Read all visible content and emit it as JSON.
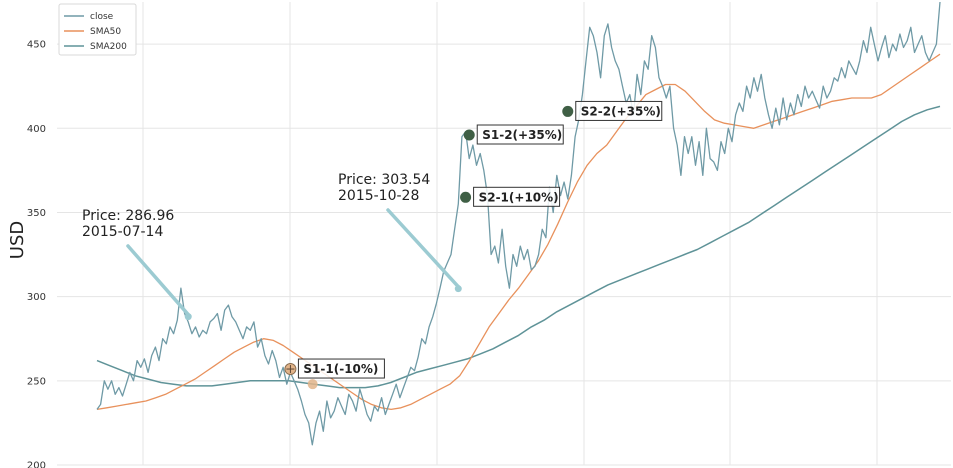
{
  "chart_data": {
    "type": "line",
    "xlabel": "",
    "ylabel": "USD",
    "ylim": [
      200,
      475
    ],
    "yticks": [
      200,
      250,
      300,
      350,
      400,
      450
    ],
    "grid": true,
    "legend_position": "top-left",
    "colors": {
      "close": "#6f9aa6",
      "sma50": "#e8915c",
      "sma200": "#5f9398",
      "grid": "#e5e5e5",
      "callout_arrow": "#9ccbd2",
      "marker_dark": "#3f5f45",
      "marker_cross": "#e2b48a"
    },
    "series": [
      {
        "name": "close",
        "values": [
          233,
          236,
          250,
          245,
          250,
          242,
          246,
          241,
          248,
          255,
          250,
          262,
          258,
          263,
          255,
          265,
          270,
          262,
          275,
          272,
          282,
          278,
          286,
          305,
          290,
          285,
          278,
          282,
          276,
          280,
          278,
          285,
          287,
          290,
          280,
          292,
          295,
          288,
          285,
          280,
          275,
          282,
          280,
          285,
          270,
          275,
          265,
          260,
          268,
          262,
          252,
          258,
          248,
          255,
          250,
          245,
          238,
          230,
          225,
          212,
          225,
          232,
          220,
          238,
          228,
          232,
          240,
          235,
          230,
          242,
          238,
          232,
          245,
          238,
          230,
          226,
          235,
          232,
          240,
          230,
          236,
          242,
          248,
          240,
          246,
          252,
          258,
          256,
          264,
          275,
          272,
          282,
          288,
          296,
          305,
          315,
          320,
          325,
          340,
          355,
          395,
          398,
          382,
          390,
          378,
          385,
          375,
          360,
          325,
          330,
          320,
          340,
          318,
          305,
          325,
          318,
          330,
          322,
          328,
          316,
          318,
          325,
          340,
          335,
          365,
          350,
          372,
          360,
          368,
          358,
          372,
          395,
          405,
          420,
          440,
          460,
          455,
          445,
          430,
          455,
          462,
          448,
          440,
          435,
          425,
          415,
          420,
          408,
          432,
          420,
          440,
          435,
          455,
          448,
          430,
          425,
          418,
          425,
          400,
          390,
          372,
          395,
          385,
          395,
          378,
          392,
          372,
          400,
          382,
          380,
          375,
          392,
          385,
          400,
          392,
          408,
          415,
          410,
          425,
          418,
          430,
          422,
          432,
          418,
          408,
          400,
          412,
          402,
          418,
          405,
          415,
          408,
          420,
          413,
          425,
          418,
          422,
          417,
          412,
          425,
          418,
          422,
          430,
          428,
          436,
          430,
          440,
          436,
          432,
          440,
          452,
          445,
          460,
          450,
          440,
          448,
          455,
          442,
          450,
          446,
          456,
          448,
          452,
          460,
          445,
          450,
          455,
          445,
          440,
          445,
          450,
          475
        ]
      },
      {
        "name": "SMA50",
        "values": [
          233,
          234,
          235,
          236,
          237,
          238,
          240,
          242,
          245,
          248,
          251,
          255,
          259,
          263,
          267,
          270,
          273,
          275,
          274,
          271,
          267,
          263,
          259,
          255,
          251,
          247,
          243,
          239,
          236,
          234,
          233,
          234,
          236,
          239,
          242,
          245,
          248,
          253,
          262,
          272,
          282,
          290,
          298,
          305,
          313,
          321,
          331,
          343,
          356,
          368,
          378,
          385,
          390,
          398,
          406,
          413,
          420,
          423,
          426,
          426,
          422,
          416,
          410,
          405,
          403,
          402,
          401,
          400,
          402,
          404,
          406,
          408,
          410,
          412,
          414,
          416,
          417,
          418,
          418,
          418,
          420,
          424,
          428,
          432,
          436,
          440,
          444
        ]
      },
      {
        "name": "SMA200",
        "values": [
          262,
          259,
          256,
          253,
          251,
          249,
          248,
          247,
          247,
          247,
          248,
          249,
          250,
          250,
          250,
          250,
          249,
          248,
          247,
          246,
          246,
          246,
          247,
          249,
          252,
          255,
          257,
          259,
          261,
          263,
          266,
          269,
          273,
          277,
          282,
          286,
          291,
          295,
          299,
          303,
          307,
          310,
          313,
          316,
          319,
          322,
          325,
          328,
          332,
          336,
          340,
          344,
          349,
          354,
          359,
          364,
          369,
          374,
          379,
          384,
          389,
          394,
          399,
          404,
          408,
          411,
          413
        ]
      }
    ],
    "annotations": [
      {
        "text_line1": "Price: 286.96",
        "text_line2": "2015-07-14",
        "value": 286.96,
        "index": 25
      },
      {
        "text_line1": "Price: 303.54",
        "text_line2": "2015-10-28",
        "value": 303.54,
        "index": 99
      }
    ],
    "signals": [
      {
        "label": "S1-1(-10%)",
        "value": 257,
        "index": 53,
        "style": "cross"
      },
      {
        "label": "S1-2(+35%)",
        "value": 396,
        "index": 102,
        "style": "dark"
      },
      {
        "label": "S2-1(+10%)",
        "value": 359,
        "index": 101,
        "style": "dark"
      },
      {
        "label": "S2-2(+35%)",
        "value": 410,
        "index": 129,
        "style": "dark"
      }
    ],
    "crossovers": [
      {
        "value": 248,
        "index": 22
      },
      {
        "value": 248,
        "index": 98
      }
    ]
  }
}
